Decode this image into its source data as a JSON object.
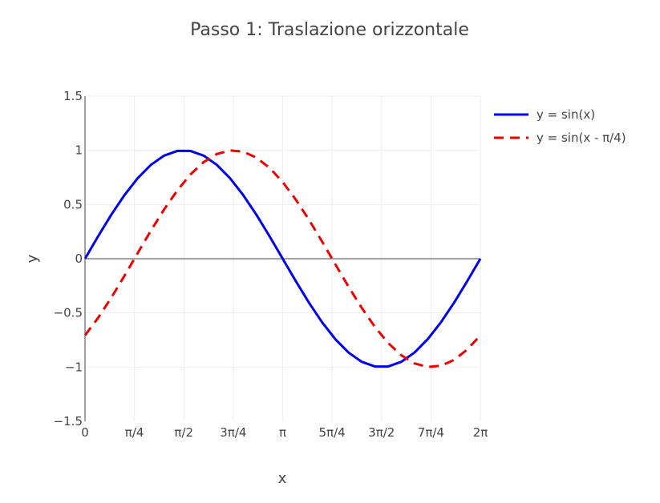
{
  "chart_data": {
    "type": "line",
    "title": "Passo 1: Traslazione orizzontale",
    "xlabel": "x",
    "ylabel": "y",
    "xlim": [
      0,
      6.283185307
    ],
    "ylim": [
      -1.5,
      1.5
    ],
    "x_ticks": [
      {
        "value": 0,
        "label": "0"
      },
      {
        "value": 0.785398163,
        "label": "π/4"
      },
      {
        "value": 1.570796327,
        "label": "π/2"
      },
      {
        "value": 2.35619449,
        "label": "3π/4"
      },
      {
        "value": 3.141592654,
        "label": "π"
      },
      {
        "value": 3.926990817,
        "label": "5π/4"
      },
      {
        "value": 4.71238898,
        "label": "3π/2"
      },
      {
        "value": 5.497787144,
        "label": "7π/4"
      },
      {
        "value": 6.283185307,
        "label": "2π"
      }
    ],
    "y_ticks": [
      {
        "value": 1.5,
        "label": "1.5"
      },
      {
        "value": 1,
        "label": "1"
      },
      {
        "value": 0.5,
        "label": "0.5"
      },
      {
        "value": 0,
        "label": "0"
      },
      {
        "value": -0.5,
        "label": "−0.5"
      },
      {
        "value": -1,
        "label": "−1"
      },
      {
        "value": -1.5,
        "label": "−1.5"
      }
    ],
    "grid": true,
    "legend_position": "top-right",
    "series": [
      {
        "name": "y = sin(x)",
        "color": "#0000ee",
        "dash": "solid",
        "x": [
          0,
          0.2094,
          0.4189,
          0.6283,
          0.8378,
          1.0472,
          1.2566,
          1.4661,
          1.6755,
          1.885,
          2.0944,
          2.3038,
          2.5133,
          2.7227,
          2.9322,
          3.1416,
          3.351,
          3.5605,
          3.7699,
          3.9794,
          4.1888,
          4.3982,
          4.6077,
          4.8171,
          5.0265,
          5.236,
          5.4454,
          5.6549,
          5.8643,
          6.0737,
          6.2832
        ],
        "y": [
          0,
          0.2079,
          0.4067,
          0.5878,
          0.7431,
          0.866,
          0.9511,
          0.9945,
          0.9945,
          0.9511,
          0.866,
          0.7431,
          0.5878,
          0.4067,
          0.2079,
          0,
          -0.2079,
          -0.4067,
          -0.5878,
          -0.7431,
          -0.866,
          -0.9511,
          -0.9945,
          -0.9945,
          -0.9511,
          -0.866,
          -0.7431,
          -0.5878,
          -0.4067,
          -0.2079,
          0
        ]
      },
      {
        "name": "y = sin(x - π/4)",
        "color": "#ee0000",
        "dash": "dash",
        "x": [
          0,
          0.2094,
          0.4189,
          0.6283,
          0.8378,
          1.0472,
          1.2566,
          1.4661,
          1.6755,
          1.885,
          2.0944,
          2.3038,
          2.5133,
          2.7227,
          2.9322,
          3.1416,
          3.351,
          3.5605,
          3.7699,
          3.9794,
          4.1888,
          4.3982,
          4.6077,
          4.8171,
          5.0265,
          5.236,
          5.4454,
          5.6549,
          5.8643,
          6.0737,
          6.2832
        ],
        "y": [
          -0.7071,
          -0.5446,
          -0.3584,
          -0.1564,
          0.0523,
          0.2588,
          0.454,
          0.6293,
          0.777,
          0.891,
          0.9659,
          0.9986,
          0.9877,
          0.9336,
          0.8387,
          0.7071,
          0.5446,
          0.3584,
          0.1564,
          -0.0523,
          -0.2588,
          -0.454,
          -0.6293,
          -0.777,
          -0.891,
          -0.9659,
          -0.9986,
          -0.9877,
          -0.9336,
          -0.8387,
          -0.7071
        ]
      }
    ]
  }
}
